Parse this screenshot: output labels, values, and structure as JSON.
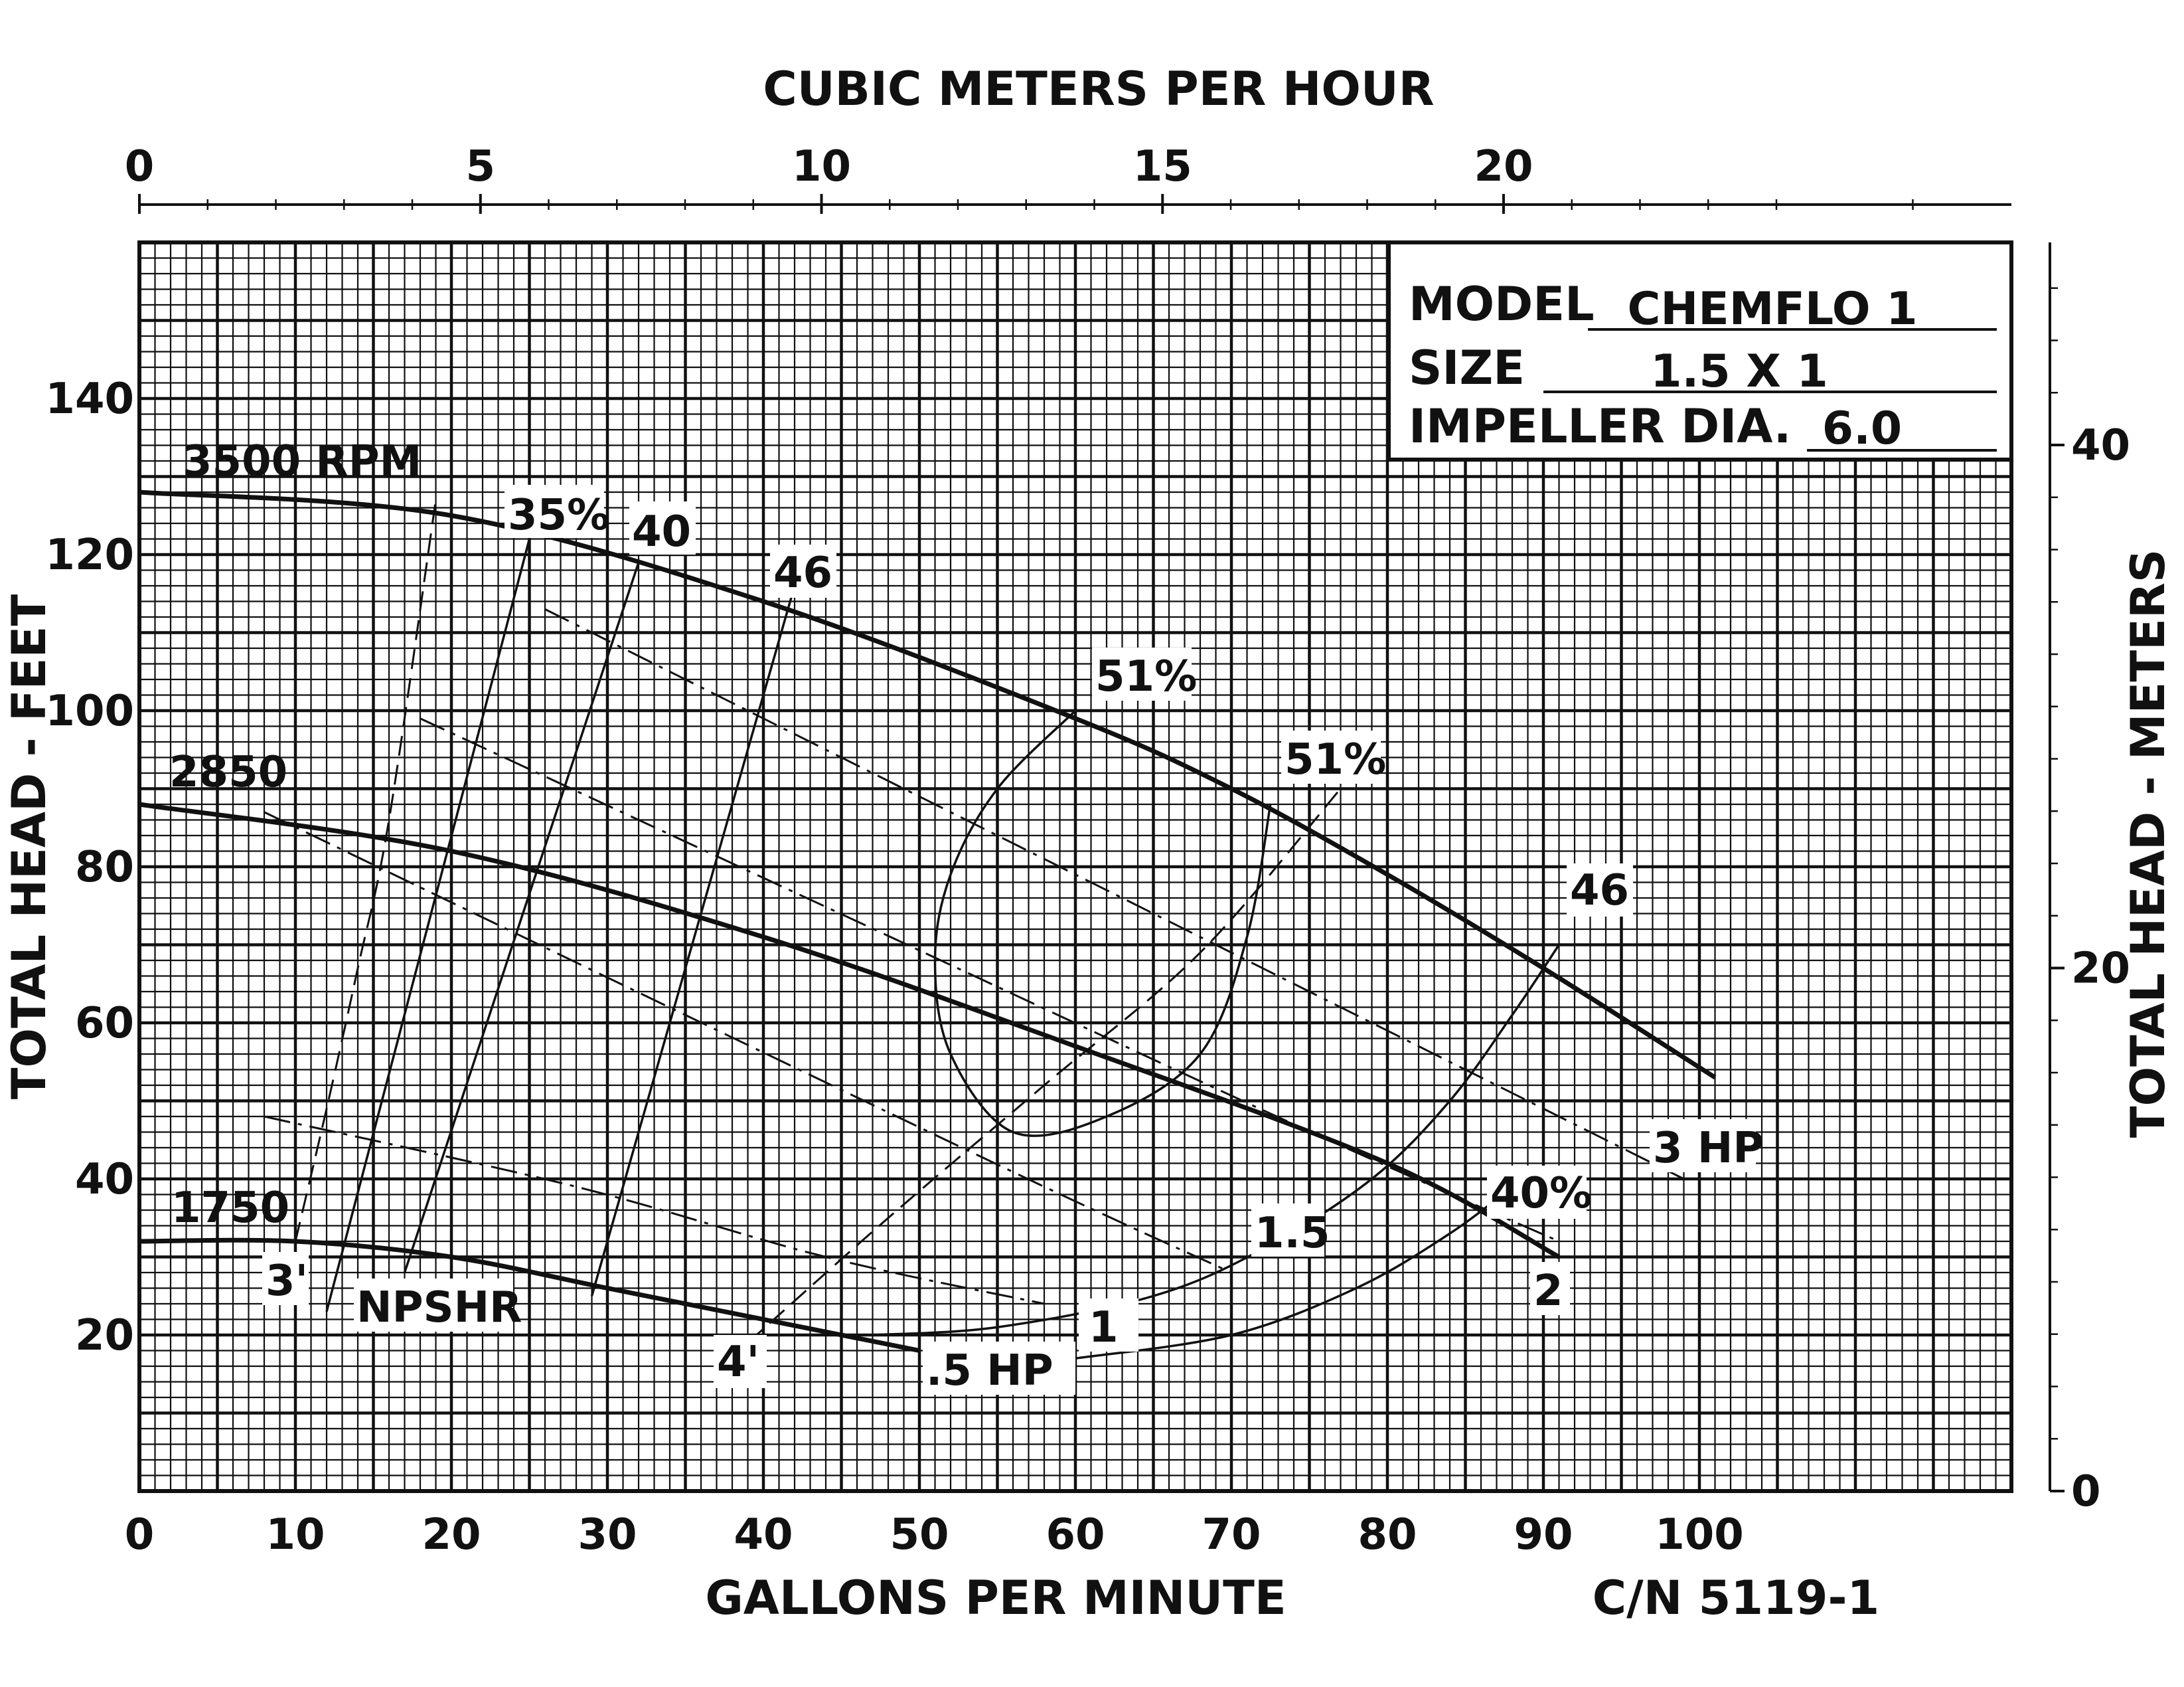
{
  "chart_data": {
    "type": "line",
    "top_axis": {
      "title": "CUBIC METERS PER HOUR",
      "ticks": [
        "0",
        "5",
        "10",
        "15",
        "20"
      ],
      "tick_values": [
        0,
        5,
        10,
        15,
        20
      ],
      "range": [
        0,
        27.5
      ]
    },
    "bottom_axis": {
      "title": "GALLONS PER MINUTE",
      "ticks": [
        "0",
        "10",
        "20",
        "30",
        "40",
        "50",
        "60",
        "70",
        "80",
        "90",
        "100"
      ],
      "tick_values": [
        0,
        10,
        20,
        30,
        40,
        50,
        60,
        70,
        80,
        90,
        100
      ],
      "range": [
        0,
        120
      ]
    },
    "left_axis": {
      "title": "TOTAL HEAD - FEET",
      "ticks": [
        "20",
        "40",
        "60",
        "80",
        "100",
        "120",
        "140"
      ],
      "tick_values": [
        20,
        40,
        60,
        80,
        100,
        120,
        140
      ],
      "range": [
        0,
        160
      ]
    },
    "right_axis": {
      "title": "TOTAL HEAD - METERS",
      "ticks": [
        "0",
        "20",
        "40"
      ],
      "tick_values": [
        0,
        20,
        40
      ]
    },
    "grid": true,
    "corner_code": "C/N 5119-1",
    "info_box": {
      "model_label": "MODEL",
      "model_value": "CHEMFLO 1",
      "size_label": "SIZE",
      "size_value": "1.5 X 1",
      "impeller_label": "IMPELLER DIA.",
      "impeller_value": "6.0"
    },
    "head_curves": [
      {
        "name": "3500 RPM",
        "x": [
          0,
          20,
          40,
          60,
          70,
          80,
          90,
          101
        ],
        "y": [
          128,
          125,
          114,
          99,
          90,
          79,
          67,
          53
        ]
      },
      {
        "name": "2850",
        "x": [
          0,
          20,
          40,
          60,
          80,
          91
        ],
        "y": [
          88,
          82,
          71,
          57,
          42,
          30
        ]
      },
      {
        "name": "1750",
        "x": [
          0,
          10,
          20,
          30,
          40,
          45,
          50
        ],
        "y": [
          32,
          32,
          30,
          26,
          22,
          20,
          18
        ]
      }
    ],
    "efficiency_curves": [
      {
        "label": "35%",
        "x": [
          12,
          25
        ],
        "y": [
          23,
          122
        ]
      },
      {
        "label": "40",
        "x": [
          17,
          32
        ],
        "y": [
          28,
          119
        ]
      },
      {
        "label": "46",
        "x": [
          29,
          42
        ],
        "y": [
          25,
          116
        ]
      },
      {
        "label": "51%",
        "x": [
          60,
          55,
          52,
          51,
          52,
          56,
          62,
          68,
          71,
          72.5
        ],
        "y": [
          100,
          90,
          79,
          68,
          56,
          46,
          48,
          56,
          71,
          88
        ]
      },
      {
        "label": "46",
        "x": [
          47,
          55,
          65,
          72,
          79,
          84,
          88,
          91
        ],
        "y": [
          20,
          21,
          25,
          31,
          40,
          50,
          61,
          70
        ]
      },
      {
        "label": "40%",
        "x": [
          60,
          70,
          78,
          84,
          88
        ],
        "y": [
          17,
          20,
          26,
          33,
          39
        ]
      }
    ],
    "npshr_curves": [
      {
        "label": "3'",
        "x": [
          10,
          12,
          14,
          16,
          19
        ],
        "y": [
          32,
          49,
          67,
          86,
          127
        ]
      },
      {
        "label": "4'",
        "x": [
          39,
          48,
          58,
          68,
          77
        ],
        "y": [
          19,
          35,
          52,
          69,
          90
        ]
      },
      {
        "label": "NPSHR"
      }
    ],
    "power_curves": [
      {
        "label": "3 HP",
        "x": [
          26,
          51,
          75,
          99
        ],
        "y": [
          113,
          88,
          64,
          40
        ]
      },
      {
        "label": "2",
        "x": [
          18,
          46,
          74,
          91
        ],
        "y": [
          99,
          73,
          47,
          32
        ]
      },
      {
        "label": "1.5",
        "x": [
          8,
          35,
          58,
          70
        ],
        "y": [
          87,
          61,
          39,
          28
        ]
      },
      {
        "label": "1",
        "x": [
          8,
          28,
          44,
          58
        ],
        "y": [
          48,
          39,
          30,
          24
        ]
      },
      {
        "label": ".5 HP"
      }
    ],
    "npshr_cross": {
      "x": 20,
      "y": 40
    }
  }
}
